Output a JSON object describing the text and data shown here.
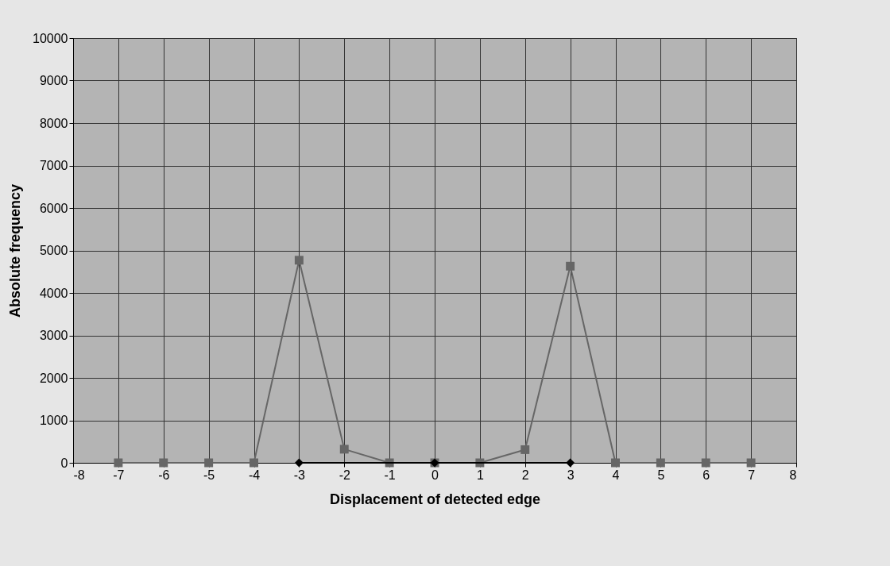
{
  "chart_data": {
    "type": "line",
    "xlabel": "Displacement of detected edge",
    "ylabel": "Absolute frequency",
    "xlim": [
      -8,
      8
    ],
    "xticks": [
      -8,
      -7,
      -6,
      -5,
      -4,
      -3,
      -2,
      -1,
      0,
      1,
      2,
      3,
      4,
      5,
      6,
      7,
      8
    ],
    "ylim": [
      0,
      10000
    ],
    "yticks": [
      0,
      1000,
      2000,
      3000,
      4000,
      5000,
      6000,
      7000,
      8000,
      9000,
      10000
    ],
    "grid": true,
    "series": [
      {
        "color": "#666666",
        "marker": "square",
        "x": [
          -7,
          -6,
          -5,
          -4,
          -3,
          -2,
          -1,
          0,
          1,
          2,
          3,
          4,
          5,
          6,
          7
        ],
        "values": [
          0,
          0,
          0,
          0,
          4770,
          320,
          0,
          0,
          0,
          310,
          4630,
          0,
          0,
          0,
          0
        ]
      },
      {
        "color": "#000000",
        "marker": "diamond",
        "x": [
          -3,
          0,
          3
        ],
        "values": [
          0,
          0,
          0
        ]
      }
    ]
  }
}
